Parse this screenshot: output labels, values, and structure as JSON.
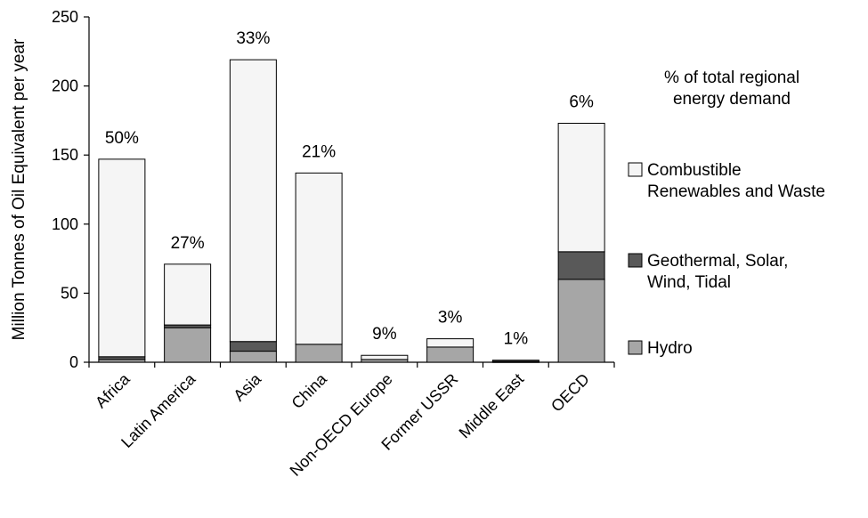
{
  "chart_data": {
    "type": "bar",
    "stacked": true,
    "title": "",
    "xlabel": "",
    "ylabel": "Million Tonnes of Oil Equivalent per year",
    "ylim": [
      0,
      250
    ],
    "yticks": [
      "0",
      "50",
      "100",
      "150",
      "200",
      "250"
    ],
    "grid": false,
    "categories": [
      "Africa",
      "Latin America",
      "Asia",
      "China",
      "Non-OECD Europe",
      "Former USSR",
      "Middle East",
      "OECD"
    ],
    "series": [
      {
        "name": "Hydro",
        "color": "#a6a6a6",
        "values": [
          2,
          25,
          8,
          13,
          2,
          11,
          0.5,
          60
        ]
      },
      {
        "name": "Geothermal, Solar, Wind, Tidal",
        "color": "#595959",
        "values": [
          2,
          2,
          7,
          0,
          0,
          0,
          1,
          20
        ]
      },
      {
        "name": "Combustible Renewables and Waste",
        "color": "#f5f5f5",
        "values": [
          143,
          44,
          204,
          124,
          3,
          6,
          0,
          93
        ]
      }
    ],
    "annotations": [
      "50%",
      "27%",
      "33%",
      "21%",
      "9%",
      "3%",
      "1%",
      "6%"
    ],
    "legend": {
      "title_lines": [
        "% of total regional",
        "energy demand"
      ],
      "position": "right",
      "entries": [
        {
          "series": "Combustible Renewables and Waste",
          "lines": [
            "Combustible",
            "Renewables and Waste"
          ]
        },
        {
          "series": "Geothermal, Solar, Wind, Tidal",
          "lines": [
            "Geothermal, Solar,",
            "Wind, Tidal"
          ]
        },
        {
          "series": "Hydro",
          "lines": [
            "Hydro"
          ]
        }
      ]
    }
  }
}
